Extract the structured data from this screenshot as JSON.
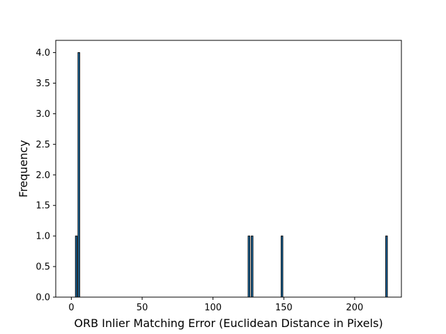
{
  "chart_data": {
    "type": "bar",
    "title": "",
    "xlabel": "ORB Inlier Matching Error (Euclidean Distance in Pixels)",
    "ylabel": "Frequency",
    "xlim": [
      -11,
      233
    ],
    "ylim": [
      0,
      4.2
    ],
    "xticks": [
      0,
      50,
      100,
      150,
      200
    ],
    "yticks": [
      0.0,
      0.5,
      1.0,
      1.5,
      2.0,
      2.5,
      3.0,
      3.5,
      4.0
    ],
    "xtick_labels": [
      "0",
      "50",
      "100",
      "150",
      "200"
    ],
    "ytick_labels": [
      "0.0",
      "0.5",
      "1.0",
      "1.5",
      "2.0",
      "2.5",
      "3.0",
      "3.5",
      "4.0"
    ],
    "bin_width": 1.2,
    "bars": [
      {
        "x": 3.5,
        "value": 1
      },
      {
        "x": 5.3,
        "value": 4
      },
      {
        "x": 125.4,
        "value": 1
      },
      {
        "x": 127.6,
        "value": 1
      },
      {
        "x": 148.7,
        "value": 1
      },
      {
        "x": 222.5,
        "value": 1
      }
    ],
    "grid": false,
    "colors": {
      "bar_fill": "#1f77b4",
      "bar_edge": "#000000"
    }
  }
}
